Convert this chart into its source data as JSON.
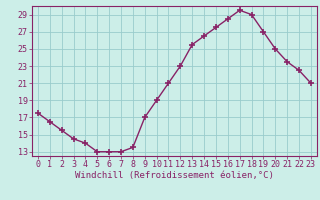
{
  "x": [
    0,
    1,
    2,
    3,
    4,
    5,
    6,
    7,
    8,
    9,
    10,
    11,
    12,
    13,
    14,
    15,
    16,
    17,
    18,
    19,
    20,
    21,
    22,
    23
  ],
  "y": [
    17.5,
    16.5,
    15.5,
    14.5,
    14.0,
    13.0,
    13.0,
    13.0,
    13.5,
    17.0,
    19.0,
    21.0,
    23.0,
    25.5,
    26.5,
    27.5,
    28.5,
    29.5,
    29.0,
    27.0,
    25.0,
    23.5,
    22.5,
    21.0
  ],
  "line_color": "#882266",
  "marker": "+",
  "marker_size": 4,
  "marker_lw": 1.2,
  "line_width": 1.0,
  "bg_color": "#cceee8",
  "grid_color": "#99cccc",
  "axis_color": "#882266",
  "spine_color": "#882266",
  "xlabel": "Windchill (Refroidissement éolien,°C)",
  "xlabel_fontsize": 6.5,
  "tick_fontsize": 6.0,
  "ylim": [
    12.5,
    30.0
  ],
  "yticks": [
    13,
    15,
    17,
    19,
    21,
    23,
    25,
    27,
    29
  ],
  "xlim": [
    -0.5,
    23.5
  ],
  "xticks": [
    0,
    1,
    2,
    3,
    4,
    5,
    6,
    7,
    8,
    9,
    10,
    11,
    12,
    13,
    14,
    15,
    16,
    17,
    18,
    19,
    20,
    21,
    22,
    23
  ]
}
